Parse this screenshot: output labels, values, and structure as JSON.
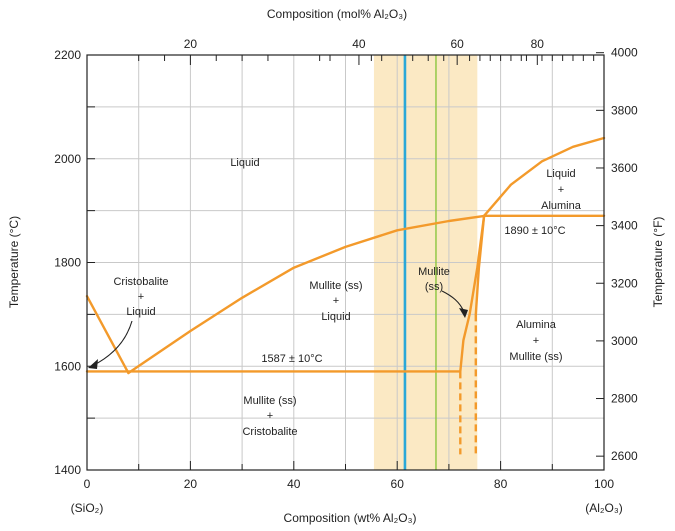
{
  "chart_data": {
    "type": "line",
    "title": "",
    "top_axis_title": "Composition (mol% Al₂O₃)",
    "bottom_axis_title": "Composition (wt% Al₂O₃)",
    "left_axis_title": "Temperature (°C)",
    "right_axis_title": "Temperature (°F)",
    "x_range": [
      0,
      100
    ],
    "y_range_C": [
      1400,
      2200
    ],
    "y_range_F": [
      2552,
      3992
    ],
    "grid": true,
    "bottom_ticks": [
      "0",
      "20",
      "40",
      "60",
      "80",
      "100"
    ],
    "top_ticks": [
      {
        "wt": 20,
        "label": "20"
      },
      {
        "wt": 52.6,
        "label": "40"
      },
      {
        "wt": 71.6,
        "label": "60"
      },
      {
        "wt": 87.1,
        "label": "80"
      }
    ],
    "left_ticks": [
      "1400",
      "1600",
      "1800",
      "2000",
      "2200"
    ],
    "right_ticks": [
      "2600",
      "2800",
      "3000",
      "3200",
      "3400",
      "3600",
      "3800",
      "4000"
    ],
    "end_labels": {
      "left": "(SiO₂)",
      "right": "(Al₂O₃)"
    },
    "highlight_band": {
      "x": [
        55.5,
        75.5
      ],
      "color": "#fbe9c4"
    },
    "reference_lines": [
      {
        "x": 61.5,
        "color": "#2aa8d8"
      },
      {
        "x": 67.5,
        "color": "#8cc63f"
      }
    ],
    "series": [
      {
        "values": [
          [
            0,
            1735
          ],
          [
            8,
            1587
          ]
        ]
      },
      {
        "values": [
          [
            8,
            1587
          ],
          [
            20,
            1668
          ],
          [
            30,
            1732
          ],
          [
            40,
            1790
          ],
          [
            50,
            1830
          ],
          [
            60,
            1862
          ],
          [
            70,
            1880
          ],
          [
            77,
            1890
          ]
        ]
      },
      {
        "values": [
          [
            0,
            1590
          ],
          [
            72,
            1590
          ]
        ]
      },
      {
        "values": [
          [
            77,
            1890
          ],
          [
            100,
            1890
          ]
        ]
      },
      {
        "values": [
          [
            76.8,
            1890
          ],
          [
            82,
            1950
          ],
          [
            88,
            1995
          ],
          [
            94,
            2023
          ],
          [
            100,
            2040
          ]
        ]
      },
      {
        "values": [
          [
            72.2,
            1590
          ],
          [
            72.8,
            1650
          ],
          [
            74,
            1700
          ],
          [
            75.5,
            1790
          ],
          [
            76.8,
            1890
          ]
        ]
      },
      {
        "values": [
          [
            75.2,
            1700
          ],
          [
            75.8,
            1790
          ],
          [
            76.8,
            1890
          ]
        ]
      }
    ],
    "dashed_series": [
      {
        "values": [
          [
            72.2,
            1590
          ],
          [
            72.2,
            1430
          ]
        ]
      },
      {
        "values": [
          [
            75.2,
            1700
          ],
          [
            75.2,
            1430
          ]
        ]
      }
    ],
    "annotations": {
      "liquid": "Liquid",
      "liquid_alumina": [
        "Liquid",
        "+",
        "Alumina"
      ],
      "eutectic_high": "1890 ± 10°C",
      "cristobalite_liquid": [
        "Cristobalite",
        "+",
        "Liquid"
      ],
      "mullite_liquid": [
        "Mullite (ss)",
        "+",
        "Liquid"
      ],
      "mullite_ss": [
        "Mullite",
        "(ss)"
      ],
      "alumina_mullite": [
        "Alumina",
        "+",
        "Mullite (ss)"
      ],
      "eutectic_low": "1587 ± 10°C",
      "mullite_cristobalite": [
        "Mullite (ss)",
        "+",
        "Cristobalite"
      ]
    }
  }
}
